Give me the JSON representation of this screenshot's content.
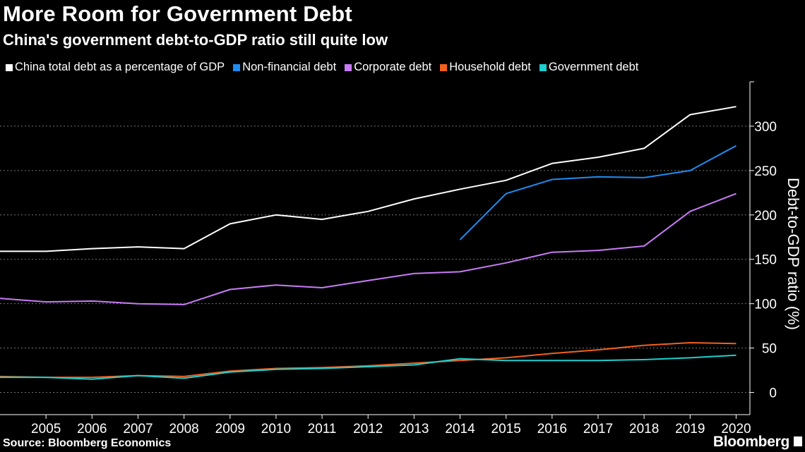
{
  "title": "More Room for Government Debt",
  "subtitle": "China's government debt-to-GDP ratio still quite low",
  "source": "Source: Bloomberg Economics",
  "brand": "Bloomberg",
  "chart_data": {
    "type": "line",
    "ylabel": "Debt-to-GDP ratio (%)",
    "ylim": [
      -25,
      350
    ],
    "yticks": [
      0,
      50,
      100,
      150,
      200,
      250,
      300
    ],
    "xlim": [
      2004,
      2020.3
    ],
    "xticks": [
      2005,
      2006,
      2007,
      2008,
      2009,
      2010,
      2011,
      2012,
      2013,
      2014,
      2015,
      2016,
      2017,
      2018,
      2019,
      2020
    ],
    "grid": true,
    "legend_position": "top",
    "series": [
      {
        "name": "China total debt as a percentage of GDP",
        "color": "#ffffff",
        "x": [
          2004,
          2005,
          2006,
          2007,
          2008,
          2009,
          2010,
          2011,
          2012,
          2013,
          2014,
          2015,
          2016,
          2017,
          2018,
          2019,
          2020
        ],
        "values": [
          159,
          159,
          162,
          164,
          162,
          190,
          200,
          195,
          204,
          218,
          229,
          239,
          258,
          265,
          275,
          313,
          322
        ]
      },
      {
        "name": "Non-financial debt",
        "color": "#1f8cf2",
        "x": [
          2014,
          2015,
          2016,
          2017,
          2018,
          2019,
          2020
        ],
        "values": [
          172,
          224,
          240,
          243,
          242,
          250,
          278
        ]
      },
      {
        "name": "Corporate debt",
        "color": "#c77cf5",
        "x": [
          2004,
          2005,
          2006,
          2007,
          2008,
          2009,
          2010,
          2011,
          2012,
          2013,
          2014,
          2015,
          2016,
          2017,
          2018,
          2019,
          2020
        ],
        "values": [
          106,
          102,
          103,
          100,
          99,
          116,
          121,
          118,
          126,
          134,
          136,
          146,
          158,
          160,
          165,
          204,
          224
        ]
      },
      {
        "name": "Household debt",
        "color": "#f2611e",
        "x": [
          2004,
          2005,
          2006,
          2007,
          2008,
          2009,
          2010,
          2011,
          2012,
          2013,
          2014,
          2015,
          2016,
          2017,
          2018,
          2019,
          2020
        ],
        "values": [
          18,
          17,
          17,
          19,
          18,
          24,
          27,
          28,
          30,
          33,
          36,
          39,
          44,
          48,
          53,
          56,
          55
        ]
      },
      {
        "name": "Government debt",
        "color": "#1dcfcf",
        "x": [
          2004,
          2005,
          2006,
          2007,
          2008,
          2009,
          2010,
          2011,
          2012,
          2013,
          2014,
          2015,
          2016,
          2017,
          2018,
          2019,
          2020
        ],
        "values": [
          17,
          17,
          15,
          19,
          16,
          23,
          26,
          27,
          29,
          31,
          38,
          36,
          36,
          36,
          37,
          39,
          42
        ]
      }
    ]
  }
}
